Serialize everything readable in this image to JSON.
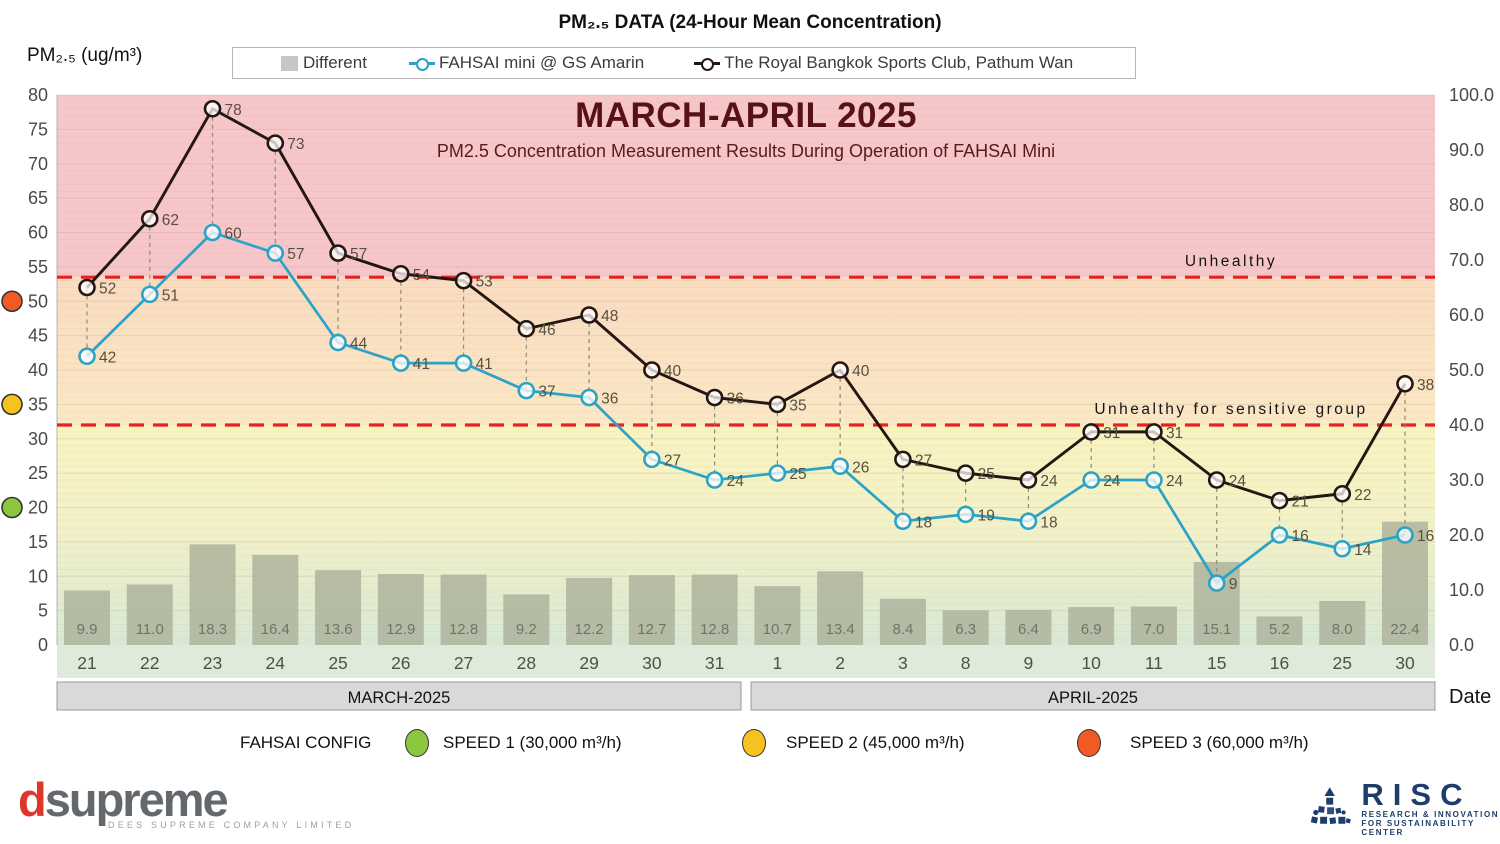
{
  "header": {
    "title": "PM₂.₅ DATA (24-Hour Mean Concentration)",
    "y_axis_label": "PM₂.₅ (ug/m³)",
    "x_axis_label": "Date"
  },
  "legend": {
    "items": [
      {
        "label": "Different",
        "type": "bar",
        "color": "#c6c6c6"
      },
      {
        "label": "FAHSAI mini @ GS Amarin",
        "type": "line",
        "color": "#2ba3c7"
      },
      {
        "label": "The Royal Bangkok Sports Club, Pathum Wan",
        "type": "line",
        "color": "#241712"
      }
    ]
  },
  "chart_data": {
    "type": "bar+line",
    "title": "MARCH-APRIL 2025",
    "subtitle": "PM2.5 Concentration Measurement Results During Operation of FAHSAI Mini",
    "categories": [
      "21",
      "22",
      "23",
      "24",
      "25",
      "26",
      "27",
      "28",
      "29",
      "30",
      "31",
      "1",
      "2",
      "3",
      "8",
      "9",
      "10",
      "11",
      "15",
      "16",
      "25",
      "30"
    ],
    "month_groups": [
      {
        "label": "MARCH-2025",
        "from": 0,
        "to": 10
      },
      {
        "label": "APRIL-2025",
        "from": 11,
        "to": 21
      }
    ],
    "series": [
      {
        "name": "Different",
        "type": "bar",
        "axis": "right",
        "color": "#aab09a",
        "values": [
          9.9,
          11.0,
          18.3,
          16.4,
          13.6,
          12.9,
          12.8,
          9.2,
          12.2,
          12.7,
          12.8,
          10.7,
          13.4,
          8.4,
          6.3,
          6.4,
          6.9,
          7.0,
          15.1,
          5.2,
          8.0,
          22.4
        ]
      },
      {
        "name": "FAHSAI mini @ GS Amarin",
        "type": "line",
        "axis": "left",
        "color": "#2ba3c7",
        "values": [
          42,
          51,
          60,
          57,
          44,
          41,
          41,
          37,
          36,
          27,
          24,
          25,
          26,
          18,
          19,
          18,
          24,
          24,
          9,
          16,
          14,
          16
        ]
      },
      {
        "name": "The Royal Bangkok Sports Club, Pathum Wan",
        "type": "line",
        "axis": "left",
        "color": "#241712",
        "values": [
          52,
          62,
          78,
          73,
          57,
          54,
          53,
          46,
          48,
          40,
          36,
          35,
          40,
          27,
          25,
          24,
          31,
          31,
          24,
          21,
          22,
          38
        ]
      }
    ],
    "left_axis": {
      "min": 0,
      "max": 80,
      "step": 5
    },
    "right_axis": {
      "min": 0,
      "max": 100,
      "step": 10,
      "decimals": 1
    },
    "thresholds": [
      {
        "value": 53.5,
        "label": "Unhealthy",
        "color": "#e8201f"
      },
      {
        "value": 32,
        "label": "Unhealthy for sensitive group",
        "color": "#e8201f"
      }
    ],
    "axis_dots": [
      {
        "value": 50,
        "color": "#f15a24"
      },
      {
        "value": 35,
        "color": "#f5c21e"
      },
      {
        "value": 20,
        "color": "#8cc63f"
      }
    ],
    "grid": true,
    "legend_position": "top"
  },
  "config_legend": {
    "title": "FAHSAI CONFIG",
    "items": [
      {
        "label": "SPEED 1 (30,000 m³/h)",
        "color": "#8cc63f"
      },
      {
        "label": "SPEED 2 (45,000 m³/h)",
        "color": "#f5c21e"
      },
      {
        "label": "SPEED 3 (60,000 m³/h)",
        "color": "#f15a24"
      }
    ]
  },
  "branding": {
    "dsupreme": {
      "d": "d",
      "rest": "supreme",
      "tagline": "DEES SUPREME COMPANY LIMITED"
    },
    "risc": {
      "name": "RISC",
      "line1": "RESEARCH & INNOVATION",
      "line2": "FOR SUSTAINABILITY CENTER"
    }
  }
}
